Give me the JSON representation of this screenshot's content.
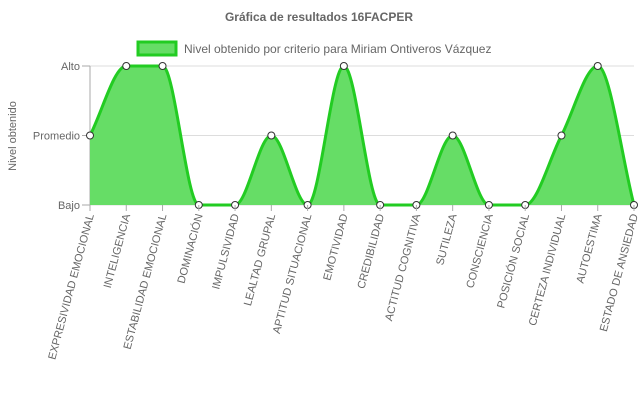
{
  "chart_data": {
    "type": "area",
    "title": "Gráfica de resultados 16FACPER",
    "ylabel": "Nivel obtenido",
    "xlabel": "",
    "y_levels": [
      "Bajo",
      "Promedio",
      "Alto"
    ],
    "ylim": [
      0,
      2
    ],
    "grid": true,
    "legend_position": "top",
    "categories": [
      "EXPRESIVIDAD EMOCIONAL",
      "INTELIGENCIA",
      "ESTABILIDAD EMOCIONAL",
      "DOMINACIÓN",
      "IMPULSIVIDAD",
      "LEALTAD GRUPAL",
      "APTITUD SITUACIONAL",
      "EMOTIVIDAD",
      "CREDIBILIDAD",
      "ACTITUD COGNITIVA",
      "SUTILEZA",
      "CONSCIENCIA",
      "POSICIÓN SOCIAL",
      "CERTEZA INDIVIDUAL",
      "AUTOESTIMA",
      "ESTADO DE ANSIEDAD"
    ],
    "series": [
      {
        "name": "Nivel obtenido por criterio para Miriam Ontiveros Vázquez",
        "values": [
          1,
          2,
          2,
          0,
          0,
          1,
          0,
          2,
          0,
          0,
          1,
          0,
          0,
          1,
          2,
          0
        ],
        "fill_color": "#66dd66",
        "line_color": "#22cc22"
      }
    ]
  }
}
